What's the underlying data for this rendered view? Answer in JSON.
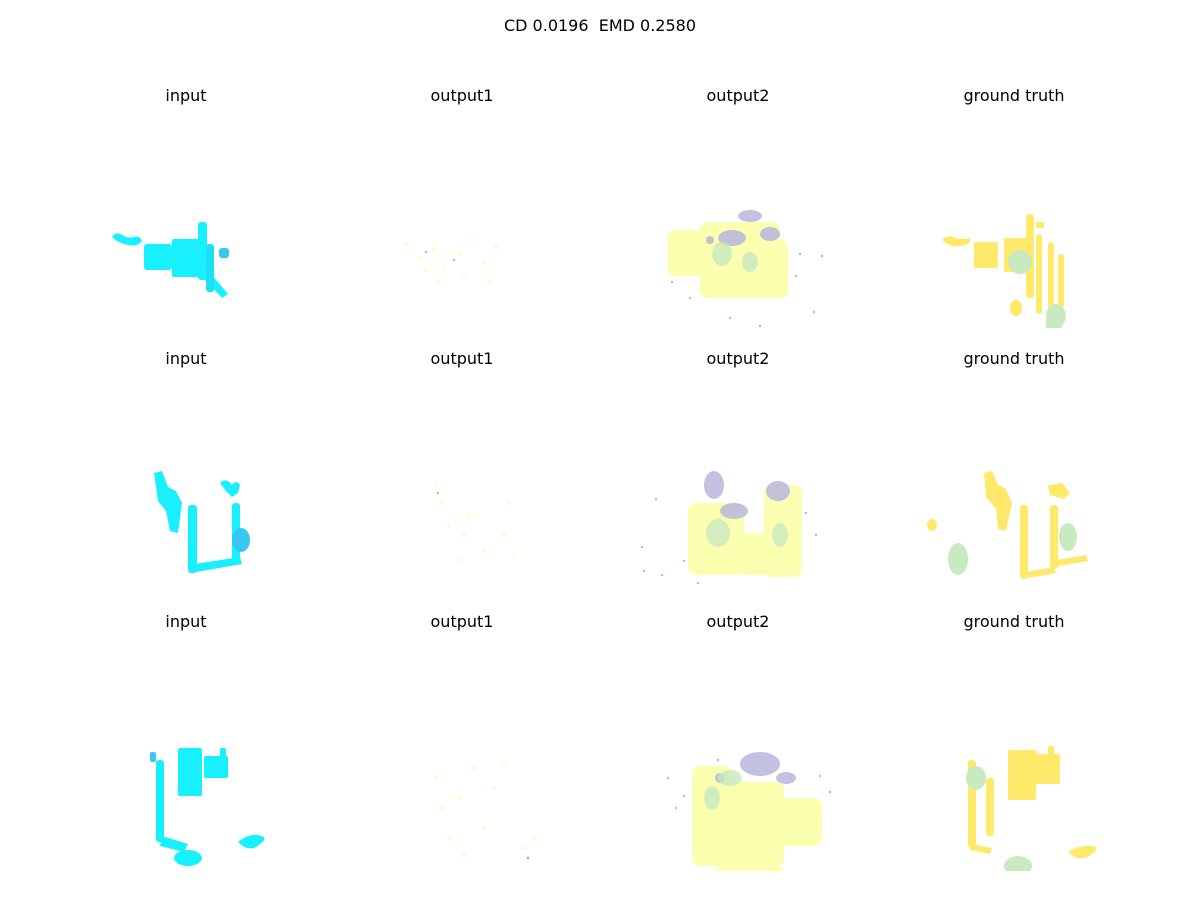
{
  "figure": {
    "suptitle": "CD 0.0196  EMD 0.2580"
  },
  "rows": [
    {
      "panels": [
        {
          "title": "input",
          "kind": "input"
        },
        {
          "title": "output1",
          "kind": "output1"
        },
        {
          "title": "output2",
          "kind": "output2"
        },
        {
          "title": "ground truth",
          "kind": "ground_truth"
        }
      ]
    },
    {
      "panels": [
        {
          "title": "input",
          "kind": "input"
        },
        {
          "title": "output1",
          "kind": "output1"
        },
        {
          "title": "output2",
          "kind": "output2"
        },
        {
          "title": "ground truth",
          "kind": "ground_truth"
        }
      ]
    },
    {
      "panels": [
        {
          "title": "input",
          "kind": "input"
        },
        {
          "title": "output1",
          "kind": "output1"
        },
        {
          "title": "output2",
          "kind": "output2"
        },
        {
          "title": "ground truth",
          "kind": "ground_truth"
        }
      ]
    }
  ],
  "colors": {
    "input_cyan": "#19f0ff",
    "input_blue": "#36c8f0",
    "yellow": "#ffe96b",
    "pale_yellow": "#fbffa8",
    "lavender": "#b9b6de",
    "mint": "#c9e9c0"
  }
}
